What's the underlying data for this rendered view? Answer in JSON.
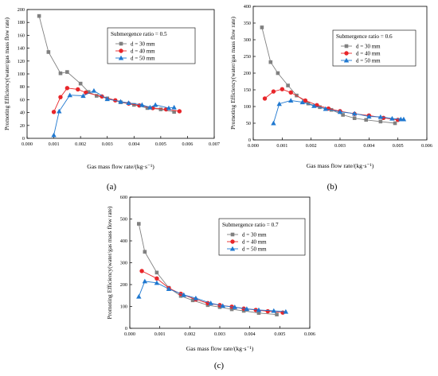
{
  "chart_data": [
    {
      "panel": "(a)",
      "type": "line",
      "xlabel": "Gas mass flow rate/(kg·s⁻¹)",
      "ylabel": "Promoting Efficiency(water/gas mass flow rate)",
      "xlim": [
        0.0,
        0.007
      ],
      "ylim": [
        0,
        200
      ],
      "x_ticks": [
        "0.000",
        "0.001",
        "0.002",
        "0.003",
        "0.004",
        "0.005",
        "0.006",
        "0.007"
      ],
      "y_ticks": [
        "0",
        "20",
        "40",
        "60",
        "80",
        "100",
        "120",
        "140",
        "160",
        "180",
        "200"
      ],
      "legend_title": "Submergence ratio = 0.5",
      "legend_position": "top-right",
      "grid": false,
      "series": [
        {
          "name": "d = 30 mm",
          "color": "#808080",
          "marker": "square",
          "x": [
            0.00045,
            0.0008,
            0.00125,
            0.0015,
            0.002,
            0.0023,
            0.0026,
            0.003,
            0.0035,
            0.004,
            0.0045,
            0.005,
            0.0055
          ],
          "y": [
            190,
            134,
            101,
            103,
            85,
            72,
            66,
            62,
            56,
            52,
            47,
            45,
            41
          ]
        },
        {
          "name": "d = 40 mm",
          "color": "#e8262a",
          "marker": "circle",
          "x": [
            0.001,
            0.00125,
            0.0015,
            0.0019,
            0.0022,
            0.0028,
            0.0033,
            0.0038,
            0.0042,
            0.0047,
            0.0052,
            0.0057
          ],
          "y": [
            41,
            64,
            78,
            76,
            71,
            65,
            59,
            54,
            51,
            47,
            45,
            42
          ]
        },
        {
          "name": "d = 50 mm",
          "color": "#1f78d0",
          "marker": "triangle",
          "x": [
            0.001,
            0.0012,
            0.0016,
            0.0021,
            0.0025,
            0.003,
            0.0035,
            0.0038,
            0.0043,
            0.0046,
            0.0048,
            0.0053,
            0.0055
          ],
          "y": [
            5,
            42,
            67,
            66,
            74,
            61,
            57,
            55,
            52,
            48,
            52,
            47,
            48
          ]
        }
      ]
    },
    {
      "panel": "(b)",
      "type": "line",
      "xlabel": "Gas mass flow rate/(kg·s⁻¹)",
      "ylabel": "Promoting Efficiency(water/gas mass flow rate)",
      "xlim": [
        0.0,
        0.006
      ],
      "ylim": [
        0,
        400
      ],
      "x_ticks": [
        "0.000",
        "0.001",
        "0.002",
        "0.003",
        "0.004",
        "0.005",
        "0.006"
      ],
      "y_ticks": [
        "0",
        "50",
        "100",
        "150",
        "200",
        "250",
        "300",
        "350",
        "400"
      ],
      "legend_title": "Submergence ratio = 0.6",
      "legend_position": "top-right",
      "grid": false,
      "series": [
        {
          "name": "d = 30 mm",
          "color": "#808080",
          "marker": "square",
          "x": [
            0.0003,
            0.0006,
            0.00085,
            0.0012,
            0.0015,
            0.0019,
            0.0023,
            0.0027,
            0.0031,
            0.0035,
            0.0039,
            0.0044,
            0.0049
          ],
          "y": [
            337,
            233,
            200,
            163,
            133,
            109,
            98,
            90,
            75,
            65,
            60,
            55,
            50
          ]
        },
        {
          "name": "d = 40 mm",
          "color": "#e8262a",
          "marker": "circle",
          "x": [
            0.0004,
            0.0007,
            0.001,
            0.0013,
            0.0018,
            0.0022,
            0.0026,
            0.003,
            0.0035,
            0.004,
            0.0045,
            0.005
          ],
          "y": [
            124,
            145,
            152,
            142,
            118,
            104,
            94,
            86,
            78,
            73,
            66,
            60
          ]
        },
        {
          "name": "d = 50 mm",
          "color": "#1f78d0",
          "marker": "triangle",
          "x": [
            0.0007,
            0.0009,
            0.0013,
            0.0017,
            0.0021,
            0.0025,
            0.003,
            0.0035,
            0.004,
            0.0044,
            0.0048,
            0.0051,
            0.0052
          ],
          "y": [
            50,
            108,
            118,
            113,
            102,
            93,
            84,
            79,
            70,
            69,
            64,
            62,
            62
          ]
        }
      ]
    },
    {
      "panel": "(c)",
      "type": "line",
      "xlabel": "Gas mass flow rate/(kg·s⁻¹)",
      "ylabel": "Promoting Efficiency(water/gas mass flow rate)",
      "xlim": [
        0.0,
        0.006
      ],
      "ylim": [
        0,
        600
      ],
      "x_ticks": [
        "0.000",
        "0.001",
        "0.002",
        "0.003",
        "0.004",
        "0.005",
        "0.006"
      ],
      "y_ticks": [
        "0",
        "100",
        "200",
        "300",
        "400",
        "500",
        "600"
      ],
      "legend_title": "Submergence ratio = 0.7",
      "legend_position": "top-right",
      "grid": false,
      "series": [
        {
          "name": "d = 30 mm",
          "color": "#808080",
          "marker": "square",
          "x": [
            0.0003,
            0.0005,
            0.0009,
            0.0013,
            0.0017,
            0.0021,
            0.0026,
            0.003,
            0.0034,
            0.0038,
            0.0043,
            0.0049
          ],
          "y": [
            478,
            350,
            255,
            185,
            148,
            128,
            106,
            97,
            87,
            80,
            70,
            63
          ]
        },
        {
          "name": "d = 40 mm",
          "color": "#e8262a",
          "marker": "circle",
          "x": [
            0.0004,
            0.0009,
            0.0013,
            0.0017,
            0.0022,
            0.0026,
            0.003,
            0.0034,
            0.0038,
            0.0042,
            0.0046,
            0.0051
          ],
          "y": [
            262,
            228,
            184,
            158,
            132,
            115,
            106,
            99,
            90,
            84,
            78,
            72
          ]
        },
        {
          "name": "d = 50 mm",
          "color": "#1f78d0",
          "marker": "triangle",
          "x": [
            0.0003,
            0.0005,
            0.0009,
            0.0013,
            0.0018,
            0.0022,
            0.0027,
            0.0031,
            0.0035,
            0.0039,
            0.0043,
            0.0048,
            0.0052
          ],
          "y": [
            145,
            215,
            208,
            180,
            153,
            138,
            115,
            103,
            97,
            89,
            84,
            80,
            76
          ]
        }
      ]
    }
  ]
}
